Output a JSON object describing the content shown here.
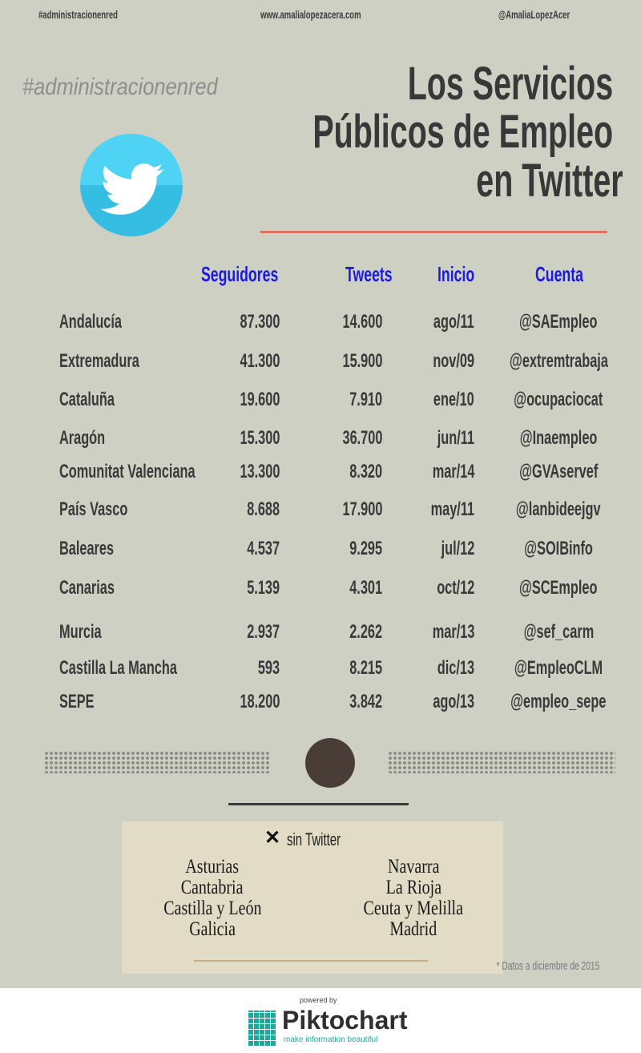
{
  "header": {
    "hashtag": "#administracionenred",
    "website": "www.amalialopezacera.com",
    "handle": "@AmaliaLopezAcer"
  },
  "hashtag_large": "#administracionenred",
  "title": [
    "Los Servicios",
    "Públicos de Empleo",
    "en Twitter"
  ],
  "icon": "twitter-bird-icon",
  "colors": {
    "accent_line": "#e0725a",
    "header_blue": "#1a1ae0",
    "twitter_blue": "#3fc6ec",
    "circle": "#4a3d38",
    "box": "#e2dbc5"
  },
  "table": {
    "columns": [
      "Seguidores",
      "Tweets",
      "Inicio",
      "Cuenta"
    ],
    "rows": [
      {
        "region": "Andalucía",
        "seguidores": "87.300",
        "tweets": "14.600",
        "inicio": "ago/11",
        "cuenta": "@SAEmpleo"
      },
      {
        "region": "Extremadura",
        "seguidores": "41.300",
        "tweets": "15.900",
        "inicio": "nov/09",
        "cuenta": "@extremtrabaja"
      },
      {
        "region": "Cataluña",
        "seguidores": "19.600",
        "tweets": "7.910",
        "inicio": "ene/10",
        "cuenta": "@ocupaciocat"
      },
      {
        "region": "Aragón",
        "seguidores": "15.300",
        "tweets": "36.700",
        "inicio": "jun/11",
        "cuenta": "@Inaempleo"
      },
      {
        "region": "Comunitat Valenciana",
        "seguidores": "13.300",
        "tweets": "8.320",
        "inicio": "mar/14",
        "cuenta": "@GVAservef"
      },
      {
        "region": "País Vasco",
        "seguidores": "8.688",
        "tweets": "17.900",
        "inicio": "may/11",
        "cuenta": "@lanbideejgv"
      },
      {
        "region": "Baleares",
        "seguidores": "4.537",
        "tweets": "9.295",
        "inicio": "jul/12",
        "cuenta": "@SOIBinfo"
      },
      {
        "region": "Canarias",
        "seguidores": "5.139",
        "tweets": "4.301",
        "inicio": "oct/12",
        "cuenta": "@SCEmpleo"
      },
      {
        "region": "Murcia",
        "seguidores": "2.937",
        "tweets": "2.262",
        "inicio": "mar/13",
        "cuenta": "@sef_carm"
      },
      {
        "region": "Castilla La Mancha",
        "seguidores": "593",
        "tweets": "8.215",
        "inicio": "dic/13",
        "cuenta": "@EmpleoCLM"
      },
      {
        "region": "SEPE",
        "seguidores": "18.200",
        "tweets": "3.842",
        "inicio": "ago/13",
        "cuenta": "@empleo_sepe"
      }
    ]
  },
  "no_twitter": {
    "icon": "x-icon",
    "label": "sin Twitter",
    "left": [
      "Asturias",
      "Cantabria",
      "Castilla y León",
      "Galicia"
    ],
    "right": [
      "Navarra",
      "La Rioja",
      "Ceuta y Melilla",
      "Madrid"
    ]
  },
  "footnote": "* Datos a diciembre de 2015",
  "footer": {
    "powered": "powered by",
    "brand": "Piktochart",
    "tagline": "make information beautiful"
  }
}
